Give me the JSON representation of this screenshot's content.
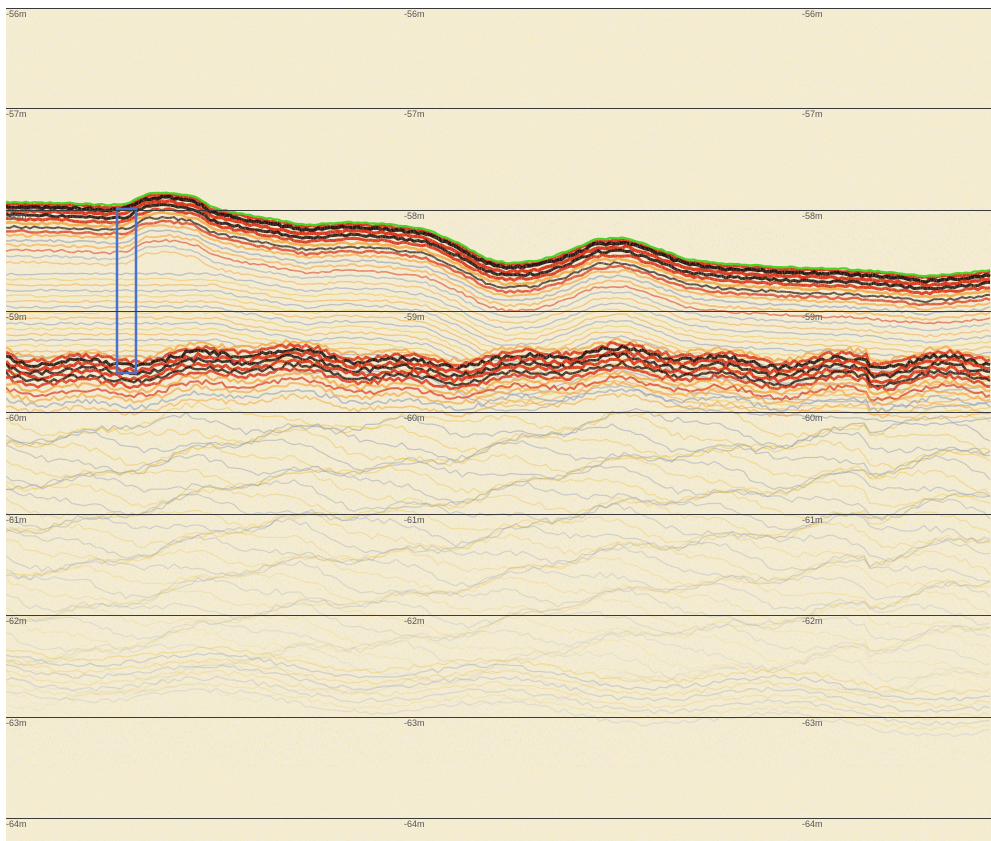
{
  "depth_lines": [
    {
      "label": "-56m"
    },
    {
      "label": "-57m"
    },
    {
      "label": "-58m"
    },
    {
      "label": "-59m"
    },
    {
      "label": "-60m"
    },
    {
      "label": "-61m"
    },
    {
      "label": "-62m"
    },
    {
      "label": "-63m"
    },
    {
      "label": "-64m"
    }
  ],
  "colors": {
    "background": "#f4edd6",
    "grid_line": "#3a3a3a",
    "seabed_pick": "#4cd32a",
    "selection_box": "#4a72c8",
    "reflector_core": "#1a0a08",
    "reflector_red": "#d82a12",
    "reflector_orange": "#f2a238",
    "speckle_yellow": "#ecc24a",
    "speckle_blue": "#8a98b8"
  },
  "overlays": {
    "seabed_pick": "seabed-pick-line",
    "selection": "selection-rectangle"
  }
}
